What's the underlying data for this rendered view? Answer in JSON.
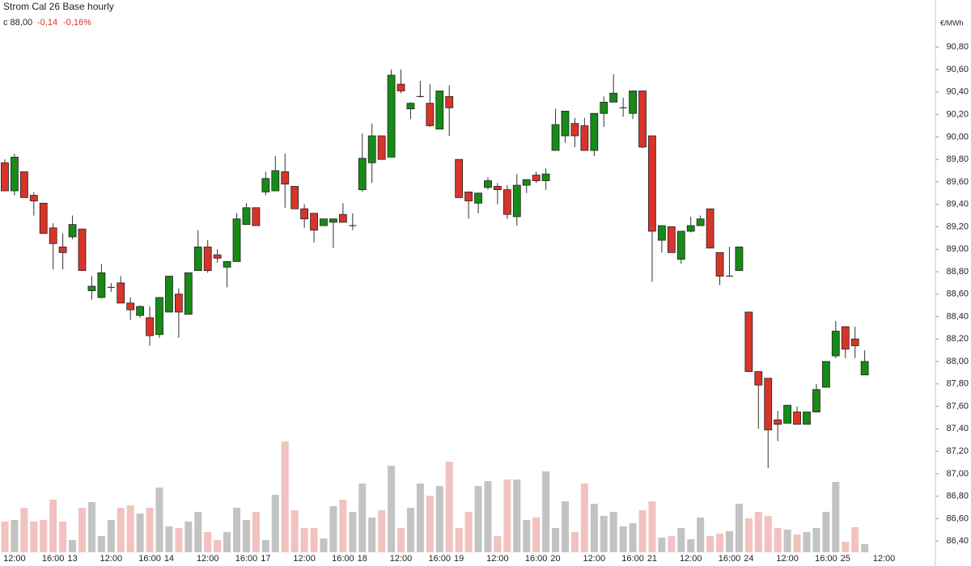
{
  "chart_data": {
    "type": "candlestick",
    "title": "Strom Cal 26 Base hourly",
    "last_label": "c 88,00",
    "change_label": "-0,14",
    "change_pct_label": "-0,16%",
    "y_unit": "€/MWh",
    "up_color": "#178a17",
    "down_color": "#d8342a",
    "volume_up_color": "#c3c3c3",
    "volume_down_color": "#f2c2c0",
    "ylim": [
      86.25,
      91.22
    ],
    "yticks": [
      {
        "value": 86.4,
        "label": "86,40"
      },
      {
        "value": 86.6,
        "label": "86,60"
      },
      {
        "value": 86.8,
        "label": "86,80"
      },
      {
        "value": 87.0,
        "label": "87,00"
      },
      {
        "value": 87.2,
        "label": "87,20"
      },
      {
        "value": 87.4,
        "label": "87,40"
      },
      {
        "value": 87.6,
        "label": "87,60"
      },
      {
        "value": 87.8,
        "label": "87,80"
      },
      {
        "value": 88.0,
        "label": "88,00"
      },
      {
        "value": 88.2,
        "label": "88,20"
      },
      {
        "value": 88.4,
        "label": "88,40"
      },
      {
        "value": 88.6,
        "label": "88,60"
      },
      {
        "value": 88.8,
        "label": "88,80"
      },
      {
        "value": 89.0,
        "label": "89,00"
      },
      {
        "value": 89.2,
        "label": "89,20"
      },
      {
        "value": 89.4,
        "label": "89,40"
      },
      {
        "value": 89.6,
        "label": "89,60"
      },
      {
        "value": 89.8,
        "label": "89,80"
      },
      {
        "value": 90.0,
        "label": "90,00"
      },
      {
        "value": 90.2,
        "label": "90,20"
      },
      {
        "value": 90.4,
        "label": "90,40"
      },
      {
        "value": 90.6,
        "label": "90,60"
      },
      {
        "value": 90.8,
        "label": "90,80"
      }
    ],
    "categories": [
      null,
      "12:00",
      null,
      null,
      null,
      "16:00",
      null,
      "13",
      null,
      null,
      null,
      "12:00",
      null,
      null,
      null,
      "16:00",
      null,
      "14",
      null,
      null,
      null,
      "12:00",
      null,
      null,
      null,
      "16:00",
      null,
      "17",
      null,
      null,
      null,
      "12:00",
      null,
      null,
      null,
      "16:00",
      null,
      "18",
      null,
      null,
      null,
      "12:00",
      null,
      null,
      null,
      "16:00",
      null,
      "19",
      null,
      null,
      null,
      "12:00",
      null,
      null,
      null,
      "16:00",
      null,
      "20",
      null,
      null,
      null,
      "12:00",
      null,
      null,
      null,
      "16:00",
      null,
      "21",
      null,
      null,
      null,
      "12:00",
      null,
      null,
      null,
      "16:00",
      null,
      "24",
      null,
      null,
      null,
      "12:00",
      null,
      null,
      null,
      "16:00",
      null,
      "25",
      null,
      null,
      null,
      "12:00"
    ],
    "open": [
      89.77,
      89.52,
      89.69,
      89.48,
      89.41,
      89.19,
      89.02,
      89.11,
      89.18,
      88.63,
      88.57,
      88.66,
      88.7,
      88.52,
      88.41,
      88.39,
      88.24,
      88.44,
      88.6,
      88.42,
      88.81,
      89.02,
      88.95,
      88.84,
      88.89,
      89.22,
      89.37,
      89.51,
      89.52,
      89.69,
      89.56,
      89.36,
      89.32,
      89.21,
      89.24,
      89.31,
      89.21,
      89.53,
      89.77,
      90.01,
      89.82,
      90.47,
      90.25,
      90.36,
      90.3,
      90.07,
      90.36,
      89.8,
      89.51,
      89.41,
      89.55,
      89.56,
      89.53,
      89.29,
      89.57,
      89.66,
      89.61,
      89.88,
      90.01,
      90.12,
      90.1,
      89.88,
      90.21,
      90.31,
      90.26,
      90.21,
      90.41,
      90.01,
      89.08,
      89.2,
      88.91,
      89.16,
      89.21,
      89.36,
      88.97,
      88.76,
      88.81,
      88.44,
      87.91,
      87.85,
      87.48,
      87.45,
      87.55,
      87.44,
      87.55,
      87.77,
      88.05,
      88.31,
      88.2,
      87.88,
      null,
      null
    ],
    "high": [
      89.8,
      89.85,
      89.69,
      89.51,
      89.41,
      89.23,
      89.14,
      89.3,
      89.18,
      88.76,
      88.87,
      88.7,
      88.76,
      88.57,
      88.5,
      88.49,
      88.57,
      88.76,
      88.65,
      88.79,
      89.17,
      89.08,
      89.0,
      88.89,
      89.32,
      89.41,
      89.37,
      89.69,
      89.83,
      89.85,
      89.56,
      89.4,
      89.32,
      89.27,
      89.27,
      89.41,
      89.32,
      90.03,
      90.12,
      90.01,
      90.6,
      90.6,
      90.31,
      90.5,
      90.47,
      90.41,
      90.46,
      89.8,
      89.51,
      89.5,
      89.64,
      89.59,
      89.57,
      89.67,
      89.62,
      89.69,
      89.72,
      90.25,
      90.23,
      90.17,
      90.17,
      90.21,
      90.36,
      90.56,
      90.35,
      90.41,
      90.41,
      90.01,
      89.21,
      89.2,
      89.16,
      89.29,
      89.3,
      89.36,
      88.97,
      89.02,
      89.02,
      88.44,
      87.91,
      87.85,
      87.56,
      87.61,
      87.6,
      87.55,
      87.8,
      88.0,
      88.36,
      88.31,
      88.31,
      88.1,
      null,
      null
    ],
    "low": [
      89.52,
      89.48,
      89.46,
      89.3,
      89.14,
      88.82,
      88.82,
      89.09,
      88.81,
      88.55,
      88.56,
      88.62,
      88.52,
      88.37,
      88.39,
      88.14,
      88.21,
      88.44,
      88.21,
      88.42,
      88.81,
      88.79,
      88.88,
      88.66,
      88.89,
      89.22,
      89.21,
      89.48,
      89.52,
      89.37,
      89.36,
      89.19,
      89.06,
      89.21,
      89.01,
      89.24,
      89.17,
      89.51,
      89.59,
      89.8,
      89.82,
      90.39,
      90.16,
      90.35,
      90.09,
      90.07,
      90.01,
      89.46,
      89.27,
      89.32,
      89.53,
      89.4,
      89.27,
      89.21,
      89.5,
      89.59,
      89.53,
      89.88,
      89.95,
      89.91,
      89.88,
      89.83,
      90.09,
      90.31,
      90.18,
      90.16,
      89.9,
      88.71,
      88.97,
      88.97,
      88.87,
      89.15,
      89.21,
      89.01,
      88.68,
      88.76,
      88.81,
      87.91,
      87.4,
      87.05,
      87.29,
      87.45,
      87.44,
      87.44,
      87.55,
      87.77,
      88.03,
      88.03,
      88.03,
      87.88,
      null,
      null
    ],
    "close": [
      89.52,
      89.82,
      89.46,
      89.43,
      89.14,
      89.05,
      88.97,
      89.22,
      88.81,
      88.67,
      88.79,
      88.66,
      88.52,
      88.46,
      88.49,
      88.23,
      88.57,
      88.76,
      88.44,
      88.79,
      89.02,
      88.81,
      88.92,
      88.89,
      89.27,
      89.37,
      89.21,
      89.63,
      89.7,
      89.58,
      89.36,
      89.27,
      89.17,
      89.27,
      89.27,
      89.24,
      89.21,
      89.81,
      90.01,
      89.8,
      90.55,
      90.41,
      90.3,
      90.36,
      90.1,
      90.41,
      90.26,
      89.46,
      89.43,
      89.5,
      89.61,
      89.53,
      89.31,
      89.57,
      89.62,
      89.61,
      89.67,
      90.11,
      90.23,
      90.01,
      89.88,
      90.21,
      90.31,
      90.39,
      90.26,
      90.41,
      89.91,
      89.16,
      89.21,
      88.97,
      89.16,
      89.21,
      89.27,
      89.01,
      88.76,
      88.76,
      89.02,
      87.91,
      87.79,
      87.39,
      87.44,
      87.61,
      87.44,
      87.55,
      87.75,
      88.0,
      88.27,
      88.11,
      88.14,
      88.0,
      null,
      null
    ],
    "volume": [
      38,
      40,
      55,
      38,
      40,
      65,
      38,
      15,
      55,
      62,
      20,
      40,
      55,
      58,
      48,
      55,
      80,
      32,
      30,
      38,
      50,
      25,
      15,
      25,
      55,
      40,
      50,
      15,
      71,
      137,
      52,
      30,
      30,
      17,
      57,
      65,
      50,
      85,
      43,
      52,
      107,
      30,
      55,
      85,
      70,
      82,
      112,
      30,
      50,
      82,
      88,
      20,
      90,
      90,
      40,
      43,
      100,
      30,
      63,
      25,
      85,
      60,
      45,
      50,
      32,
      36,
      52,
      63,
      18,
      20,
      30,
      16,
      43,
      20,
      23,
      26,
      60,
      42,
      50,
      45,
      30,
      28,
      22,
      25,
      30,
      50,
      87,
      13,
      31,
      10,
      null,
      null
    ]
  }
}
